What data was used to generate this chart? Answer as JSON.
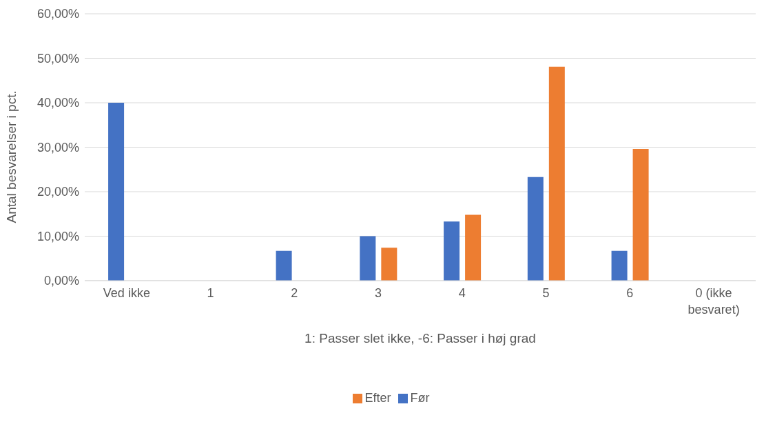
{
  "chart_data": {
    "type": "bar",
    "xlabel": "1: Passer slet ikke, -6: Passer i høj grad",
    "ylabel": "Antal besvarelser i pct.",
    "categories": [
      "Ved ikke",
      "1",
      "2",
      "3",
      "4",
      "5",
      "6",
      "0 (ikke besvaret)"
    ],
    "series": [
      {
        "name": "Før",
        "color": "#4472c4",
        "values": [
          40,
          0,
          6.7,
          10,
          13.3,
          23.3,
          6.7,
          0
        ]
      },
      {
        "name": "Efter",
        "color": "#ed7d31",
        "values": [
          0,
          0,
          0,
          7.4,
          14.8,
          48.1,
          29.6,
          0
        ]
      }
    ],
    "ylim": [
      0,
      60
    ],
    "yticks": [
      {
        "value": 0,
        "label": "0,00%"
      },
      {
        "value": 10,
        "label": "10,00%"
      },
      {
        "value": 20,
        "label": "20,00%"
      },
      {
        "value": 30,
        "label": "30,00%"
      },
      {
        "value": 40,
        "label": "40,00%"
      },
      {
        "value": 50,
        "label": "50,00%"
      },
      {
        "value": 60,
        "label": "60,00%"
      }
    ],
    "grid": "y",
    "legend": "bottom"
  }
}
